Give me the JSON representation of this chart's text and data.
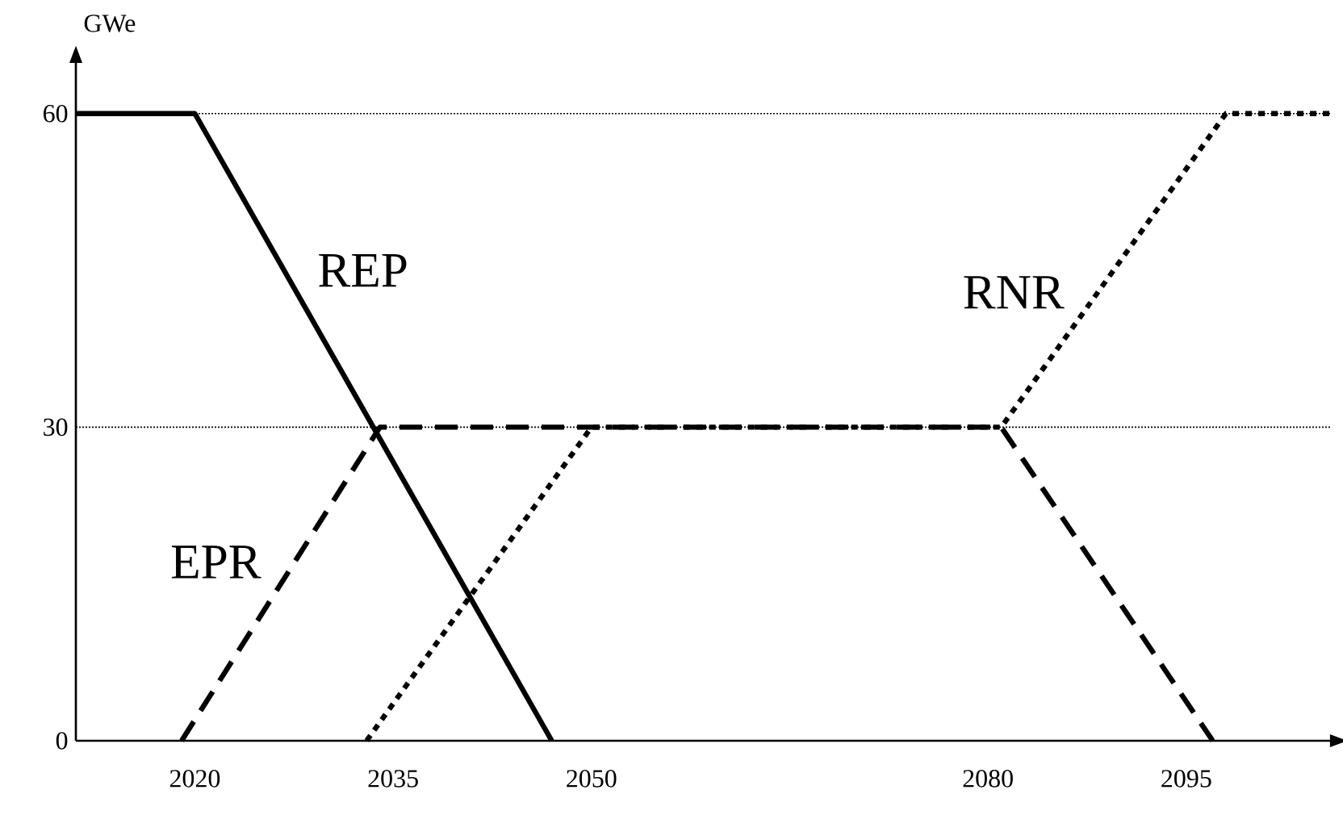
{
  "chart_data": {
    "type": "line",
    "ylabel": "GWe",
    "xlim": [
      2011,
      2106
    ],
    "ylim": [
      0,
      65
    ],
    "xticks": [
      2020,
      2035,
      2050,
      2080,
      2095
    ],
    "yticks": [
      0,
      30,
      60
    ],
    "series": [
      {
        "name": "REP",
        "color": "#000000",
        "line_style": "solid",
        "x": [
          2011,
          2020,
          2047
        ],
        "values": [
          60,
          60,
          0
        ]
      },
      {
        "name": "EPR",
        "color": "#000000",
        "line_style": "dashed",
        "x": [
          2019,
          2034,
          2081,
          2097
        ],
        "values": [
          0,
          30,
          30,
          0
        ]
      },
      {
        "name": "RNR",
        "color": "#000000",
        "line_style": "dotted",
        "x": [
          2033,
          2050,
          2081,
          2098,
          2106
        ],
        "values": [
          0,
          30,
          30,
          60,
          60
        ]
      }
    ],
    "ref_lines": [
      {
        "axis": "y",
        "value": 30,
        "color": "#000000",
        "line_style": "dotted"
      },
      {
        "axis": "y",
        "value": 60,
        "color": "#000000",
        "line_style": "dotted"
      }
    ]
  }
}
